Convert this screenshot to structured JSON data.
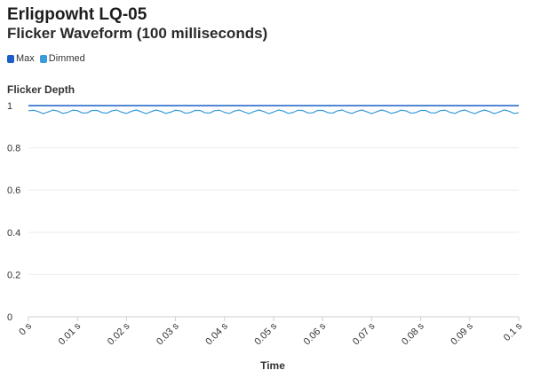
{
  "header": {
    "title": "Erligpowht LQ-05",
    "subtitle": "Flicker Waveform (100 milliseconds)"
  },
  "colors": {
    "max": "#1a5fc7",
    "dimmed": "#3c9bdc",
    "grid": "#ececec",
    "axis": "#333333"
  },
  "chart_data": {
    "type": "line",
    "title": "Flicker Waveform (100 milliseconds)",
    "xlabel": "Time",
    "ylabel": "Flicker Depth",
    "xlim": [
      0,
      0.1
    ],
    "ylim": [
      0,
      1
    ],
    "x_ticks": [
      0,
      0.01,
      0.02,
      0.03,
      0.04,
      0.05,
      0.06,
      0.07,
      0.08,
      0.09,
      0.1
    ],
    "x_tick_labels": [
      "0 s",
      "0.01 s",
      "0.02 s",
      "0.03 s",
      "0.04 s",
      "0.05 s",
      "0.06 s",
      "0.07 s",
      "0.08 s",
      "0.09 s",
      "0.1 s"
    ],
    "y_ticks": [
      0,
      0.2,
      0.4,
      0.6,
      0.8,
      1
    ],
    "y_tick_labels": [
      "0",
      "0.2",
      "0.4",
      "0.6",
      "0.8",
      "1"
    ],
    "grid": true,
    "legend_position": "top-left",
    "series": [
      {
        "name": "Max",
        "x": [
          0,
          0.1
        ],
        "y": [
          1,
          1
        ]
      },
      {
        "name": "Dimmed",
        "x": [
          0,
          0.001,
          0.002,
          0.003,
          0.004,
          0.005,
          0.006,
          0.007,
          0.008,
          0.009,
          0.01,
          0.011,
          0.012,
          0.013,
          0.014,
          0.015,
          0.016,
          0.017,
          0.018,
          0.019,
          0.02,
          0.021,
          0.022,
          0.023,
          0.024,
          0.025,
          0.026,
          0.027,
          0.028,
          0.029,
          0.03,
          0.031,
          0.032,
          0.033,
          0.034,
          0.035,
          0.036,
          0.037,
          0.038,
          0.039,
          0.04,
          0.041,
          0.042,
          0.043,
          0.044,
          0.045,
          0.046,
          0.047,
          0.048,
          0.049,
          0.05,
          0.051,
          0.052,
          0.053,
          0.054,
          0.055,
          0.056,
          0.057,
          0.058,
          0.059,
          0.06,
          0.061,
          0.062,
          0.063,
          0.064,
          0.065,
          0.066,
          0.067,
          0.068,
          0.069,
          0.07,
          0.071,
          0.072,
          0.073,
          0.074,
          0.075,
          0.076,
          0.077,
          0.078,
          0.079,
          0.08,
          0.081,
          0.082,
          0.083,
          0.084,
          0.085,
          0.086,
          0.087,
          0.088,
          0.089,
          0.09,
          0.091,
          0.092,
          0.093,
          0.094,
          0.095,
          0.096,
          0.097,
          0.098,
          0.099,
          0.1
        ],
        "y": [
          0.975,
          0.978,
          0.972,
          0.962,
          0.97,
          0.979,
          0.974,
          0.963,
          0.968,
          0.978,
          0.976,
          0.965,
          0.966,
          0.977,
          0.977,
          0.967,
          0.964,
          0.975,
          0.979,
          0.969,
          0.963,
          0.973,
          0.979,
          0.971,
          0.962,
          0.971,
          0.979,
          0.973,
          0.963,
          0.969,
          0.978,
          0.975,
          0.964,
          0.967,
          0.977,
          0.977,
          0.966,
          0.965,
          0.976,
          0.978,
          0.968,
          0.963,
          0.974,
          0.979,
          0.97,
          0.962,
          0.972,
          0.979,
          0.972,
          0.962,
          0.97,
          0.979,
          0.974,
          0.963,
          0.968,
          0.978,
          0.976,
          0.965,
          0.966,
          0.977,
          0.977,
          0.967,
          0.964,
          0.975,
          0.979,
          0.969,
          0.963,
          0.973,
          0.979,
          0.971,
          0.962,
          0.971,
          0.979,
          0.973,
          0.963,
          0.969,
          0.978,
          0.975,
          0.964,
          0.967,
          0.977,
          0.977,
          0.966,
          0.965,
          0.976,
          0.978,
          0.968,
          0.963,
          0.974,
          0.979,
          0.97,
          0.962,
          0.972,
          0.979,
          0.972,
          0.962,
          0.97,
          0.979,
          0.974,
          0.963,
          0.966
        ]
      }
    ]
  }
}
